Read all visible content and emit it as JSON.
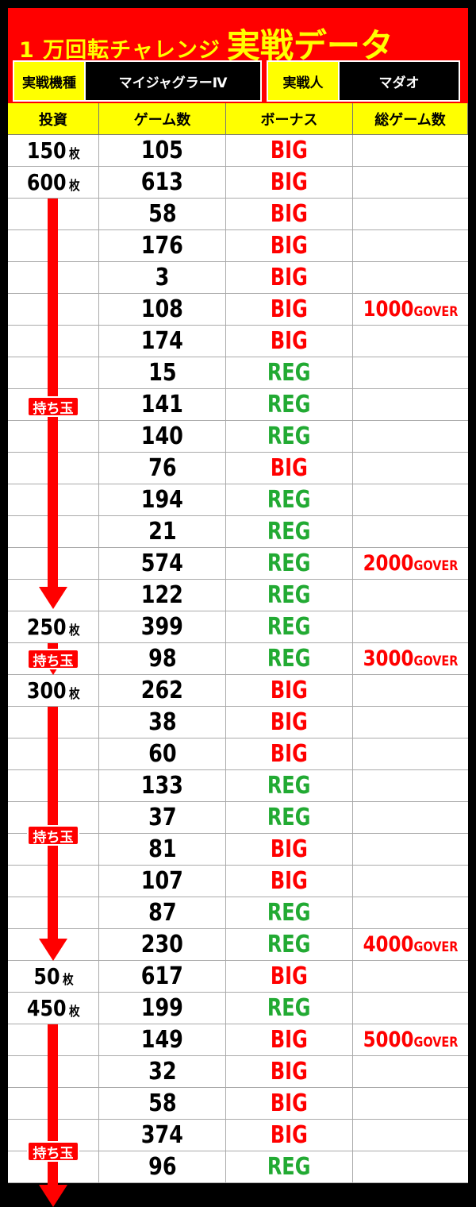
{
  "header": {
    "title_part1": "1 万回転チャレンジ",
    "title_part2": "実戦データ",
    "machine_label": "実戦機種",
    "machine_value": "マイジャグラーⅣ",
    "player_label": "実戦人",
    "player_value": "マダオ"
  },
  "columns": [
    "投資",
    "ゲーム数",
    "ボーナス",
    "総ゲーム数"
  ],
  "unit": "枚",
  "total_suffix": "GOVER",
  "mochidama_label": "持ち玉",
  "colors": {
    "red": "#ff0000",
    "yellow": "#ffff00",
    "green": "#22aa33"
  },
  "rows": [
    {
      "inv": "150",
      "games": "105",
      "bonus": "BIG",
      "total": ""
    },
    {
      "inv": "600",
      "games": "613",
      "bonus": "BIG",
      "total": ""
    },
    {
      "inv": "",
      "games": "58",
      "bonus": "BIG",
      "total": ""
    },
    {
      "inv": "",
      "games": "176",
      "bonus": "BIG",
      "total": ""
    },
    {
      "inv": "",
      "games": "3",
      "bonus": "BIG",
      "total": ""
    },
    {
      "inv": "",
      "games": "108",
      "bonus": "BIG",
      "total": "1000"
    },
    {
      "inv": "",
      "games": "174",
      "bonus": "BIG",
      "total": ""
    },
    {
      "inv": "",
      "games": "15",
      "bonus": "REG",
      "total": ""
    },
    {
      "inv": "",
      "games": "141",
      "bonus": "REG",
      "total": ""
    },
    {
      "inv": "",
      "games": "140",
      "bonus": "REG",
      "total": ""
    },
    {
      "inv": "",
      "games": "76",
      "bonus": "BIG",
      "total": ""
    },
    {
      "inv": "",
      "games": "194",
      "bonus": "REG",
      "total": ""
    },
    {
      "inv": "",
      "games": "21",
      "bonus": "REG",
      "total": ""
    },
    {
      "inv": "",
      "games": "574",
      "bonus": "REG",
      "total": "2000"
    },
    {
      "inv": "",
      "games": "122",
      "bonus": "REG",
      "total": ""
    },
    {
      "inv": "250",
      "games": "399",
      "bonus": "REG",
      "total": ""
    },
    {
      "inv": "",
      "games": "98",
      "bonus": "REG",
      "total": "3000"
    },
    {
      "inv": "300",
      "games": "262",
      "bonus": "BIG",
      "total": ""
    },
    {
      "inv": "",
      "games": "38",
      "bonus": "BIG",
      "total": ""
    },
    {
      "inv": "",
      "games": "60",
      "bonus": "BIG",
      "total": ""
    },
    {
      "inv": "",
      "games": "133",
      "bonus": "REG",
      "total": ""
    },
    {
      "inv": "",
      "games": "37",
      "bonus": "REG",
      "total": ""
    },
    {
      "inv": "",
      "games": "81",
      "bonus": "BIG",
      "total": ""
    },
    {
      "inv": "",
      "games": "107",
      "bonus": "BIG",
      "total": ""
    },
    {
      "inv": "",
      "games": "87",
      "bonus": "REG",
      "total": ""
    },
    {
      "inv": "",
      "games": "230",
      "bonus": "REG",
      "total": "4000"
    },
    {
      "inv": "50",
      "games": "617",
      "bonus": "BIG",
      "total": ""
    },
    {
      "inv": "450",
      "games": "199",
      "bonus": "REG",
      "total": ""
    },
    {
      "inv": "",
      "games": "149",
      "bonus": "BIG",
      "total": "5000"
    },
    {
      "inv": "",
      "games": "32",
      "bonus": "BIG",
      "total": ""
    },
    {
      "inv": "",
      "games": "58",
      "bonus": "BIG",
      "total": ""
    },
    {
      "inv": "",
      "games": "374",
      "bonus": "BIG",
      "total": ""
    },
    {
      "inv": "",
      "games": "96",
      "bonus": "REG",
      "total": ""
    }
  ]
}
